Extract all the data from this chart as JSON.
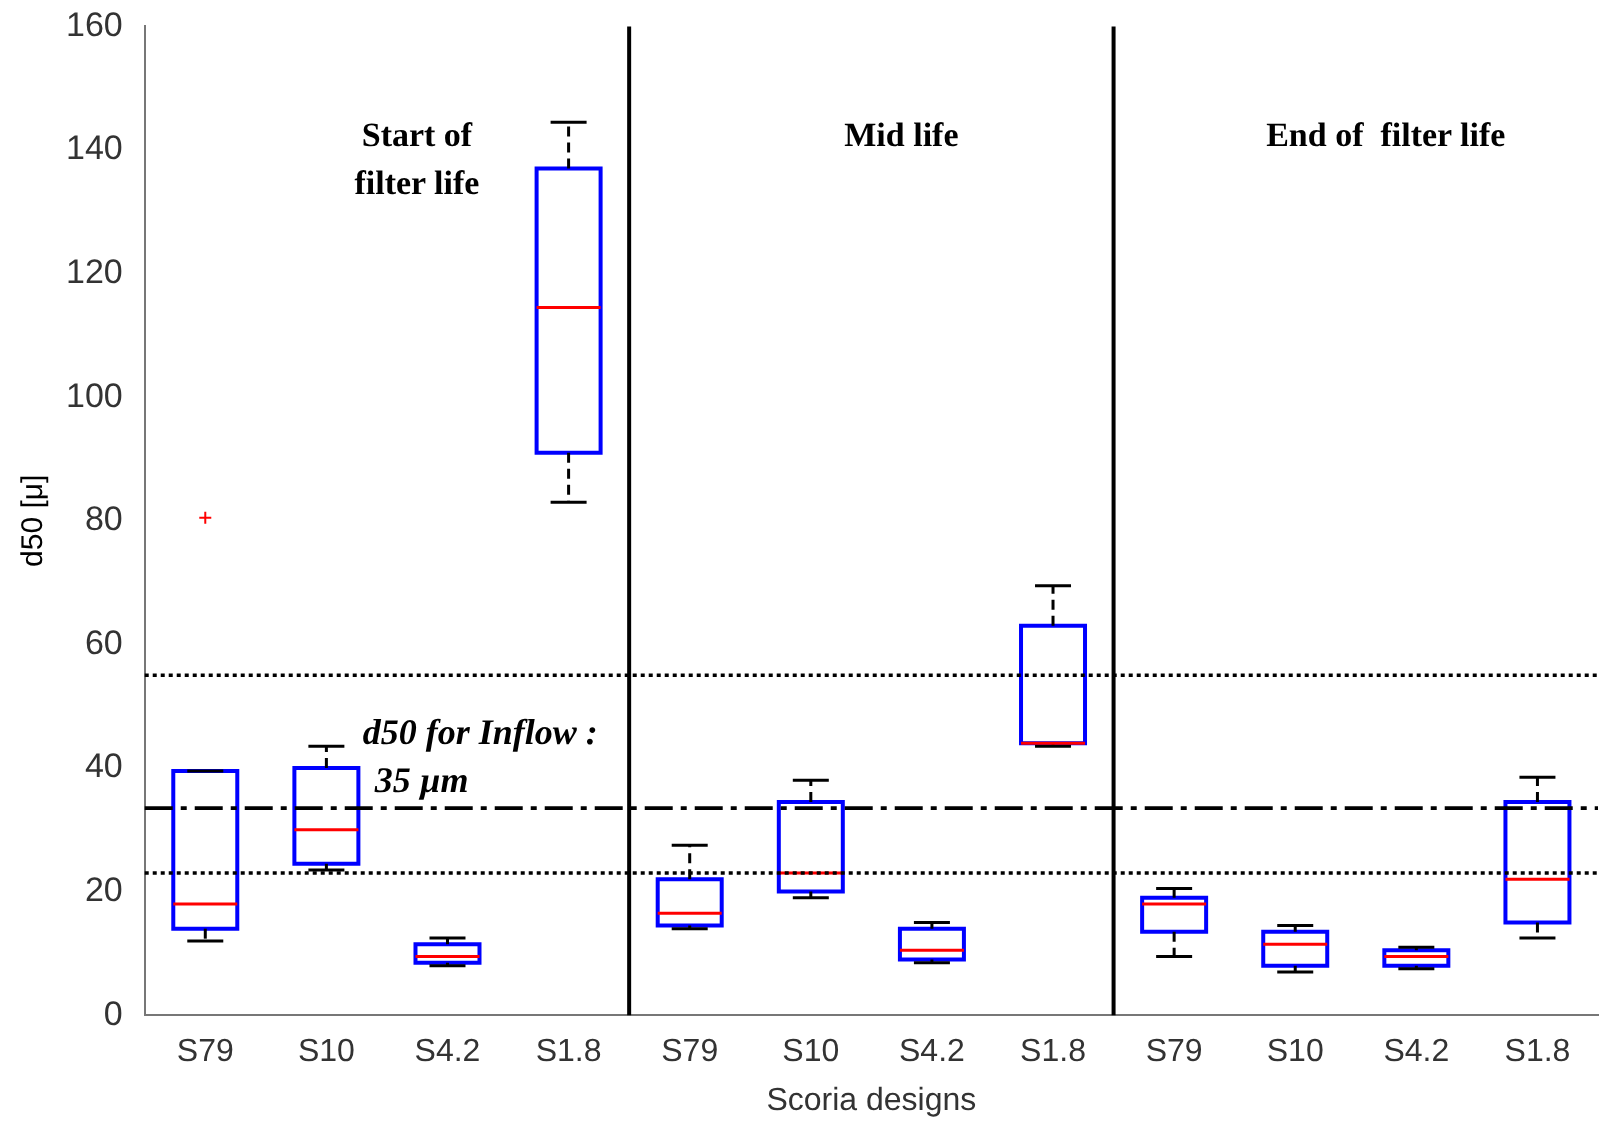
{
  "chart_data": {
    "type": "box",
    "xlabel": "Scoria designs",
    "ylabel": "d50 [μ]",
    "categories": [
      "S79",
      "S10",
      "S4.2",
      "S1.8",
      "S79",
      "S10",
      "S4.2",
      "S1.8",
      "S79",
      "S10",
      "S4.2",
      "S1.8"
    ],
    "series": [
      {
        "color": "#0000ff",
        "boxes": [
          {
            "low": 12,
            "q1": 14,
            "median": 18,
            "q3": 39.5,
            "high": 39.5,
            "outliers": [
              80.5
            ]
          },
          {
            "low": 23.5,
            "q1": 24.5,
            "median": 30,
            "q3": 40,
            "high": 43.5
          },
          {
            "low": 8,
            "q1": 8.5,
            "median": 9.5,
            "q3": 11.5,
            "high": 12.5
          },
          {
            "low": 83,
            "q1": 91,
            "median": 114.5,
            "q3": 137,
            "high": 144.5
          },
          {
            "low": 14,
            "q1": 14.5,
            "median": 16.5,
            "q3": 22,
            "high": 27.5
          },
          {
            "low": 19,
            "q1": 20,
            "median": 23,
            "q3": 34.5,
            "high": 38
          },
          {
            "low": 8.5,
            "q1": 9,
            "median": 10.5,
            "q3": 14,
            "high": 15
          },
          {
            "low": 43.5,
            "q1": 44,
            "median": 44,
            "q3": 63,
            "high": 69.5
          },
          {
            "low": 9.5,
            "q1": 13.5,
            "median": 18,
            "q3": 19,
            "high": 20.5
          },
          {
            "low": 7,
            "q1": 8,
            "median": 11.5,
            "q3": 13.5,
            "high": 14.5
          },
          {
            "low": 7.5,
            "q1": 8,
            "median": 9.5,
            "q3": 10.5,
            "high": 11
          },
          {
            "low": 12.5,
            "q1": 15,
            "median": 22,
            "q3": 34.5,
            "high": 38.5
          }
        ]
      }
    ],
    "ylim": [
      0,
      160
    ],
    "yticks": [
      0,
      20,
      40,
      60,
      80,
      100,
      120,
      140,
      160
    ],
    "ref_lines": [
      {
        "axis": "y",
        "value": 55,
        "line_style": "dotted",
        "color": "#000000"
      },
      {
        "axis": "y",
        "value": 23,
        "line_style": "dotted",
        "color": "#000000"
      },
      {
        "axis": "y",
        "value": 33.5,
        "line_style": "dashed",
        "color": "#000000"
      }
    ],
    "annotations": [
      "d50 for Inflow :\n35 µm",
      "Start of\nfilter life",
      "Mid life",
      "End of  filter life"
    ],
    "grid": false,
    "legend": false
  }
}
